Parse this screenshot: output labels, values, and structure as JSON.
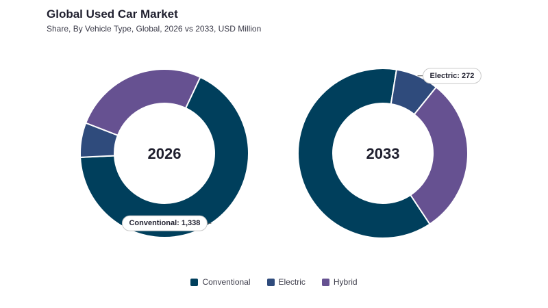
{
  "header": {
    "title": "Global Used Car Market",
    "subtitle": "Share, By Vehicle Type, Global, 2026 vs 2033, USD Million"
  },
  "chart_data": [
    {
      "type": "pie",
      "variant": "donut",
      "center_label": "2026",
      "categories": [
        "Conventional",
        "Electric",
        "Hybrid"
      ],
      "values": [
        1338,
        132,
        520
      ],
      "colors": [
        "#003f5c",
        "#2f4b7c",
        "#665191"
      ],
      "callouts": [
        {
          "category": "Conventional",
          "text": "Conventional: 1,338",
          "side": "left"
        }
      ]
    },
    {
      "type": "pie",
      "variant": "donut",
      "center_label": "2033",
      "categories": [
        "Conventional",
        "Electric",
        "Hybrid"
      ],
      "values": [
        2048,
        272,
        990
      ],
      "colors": [
        "#003f5c",
        "#2f4b7c",
        "#665191"
      ],
      "callouts": [
        {
          "category": "Electric",
          "text": "Electric: 272",
          "side": "right"
        }
      ]
    }
  ],
  "legend": {
    "placement": "bottom-center",
    "items": [
      {
        "label": "Conventional",
        "color": "#003f5c"
      },
      {
        "label": "Electric",
        "color": "#2f4b7c"
      },
      {
        "label": "Hybrid",
        "color": "#665191"
      }
    ]
  }
}
